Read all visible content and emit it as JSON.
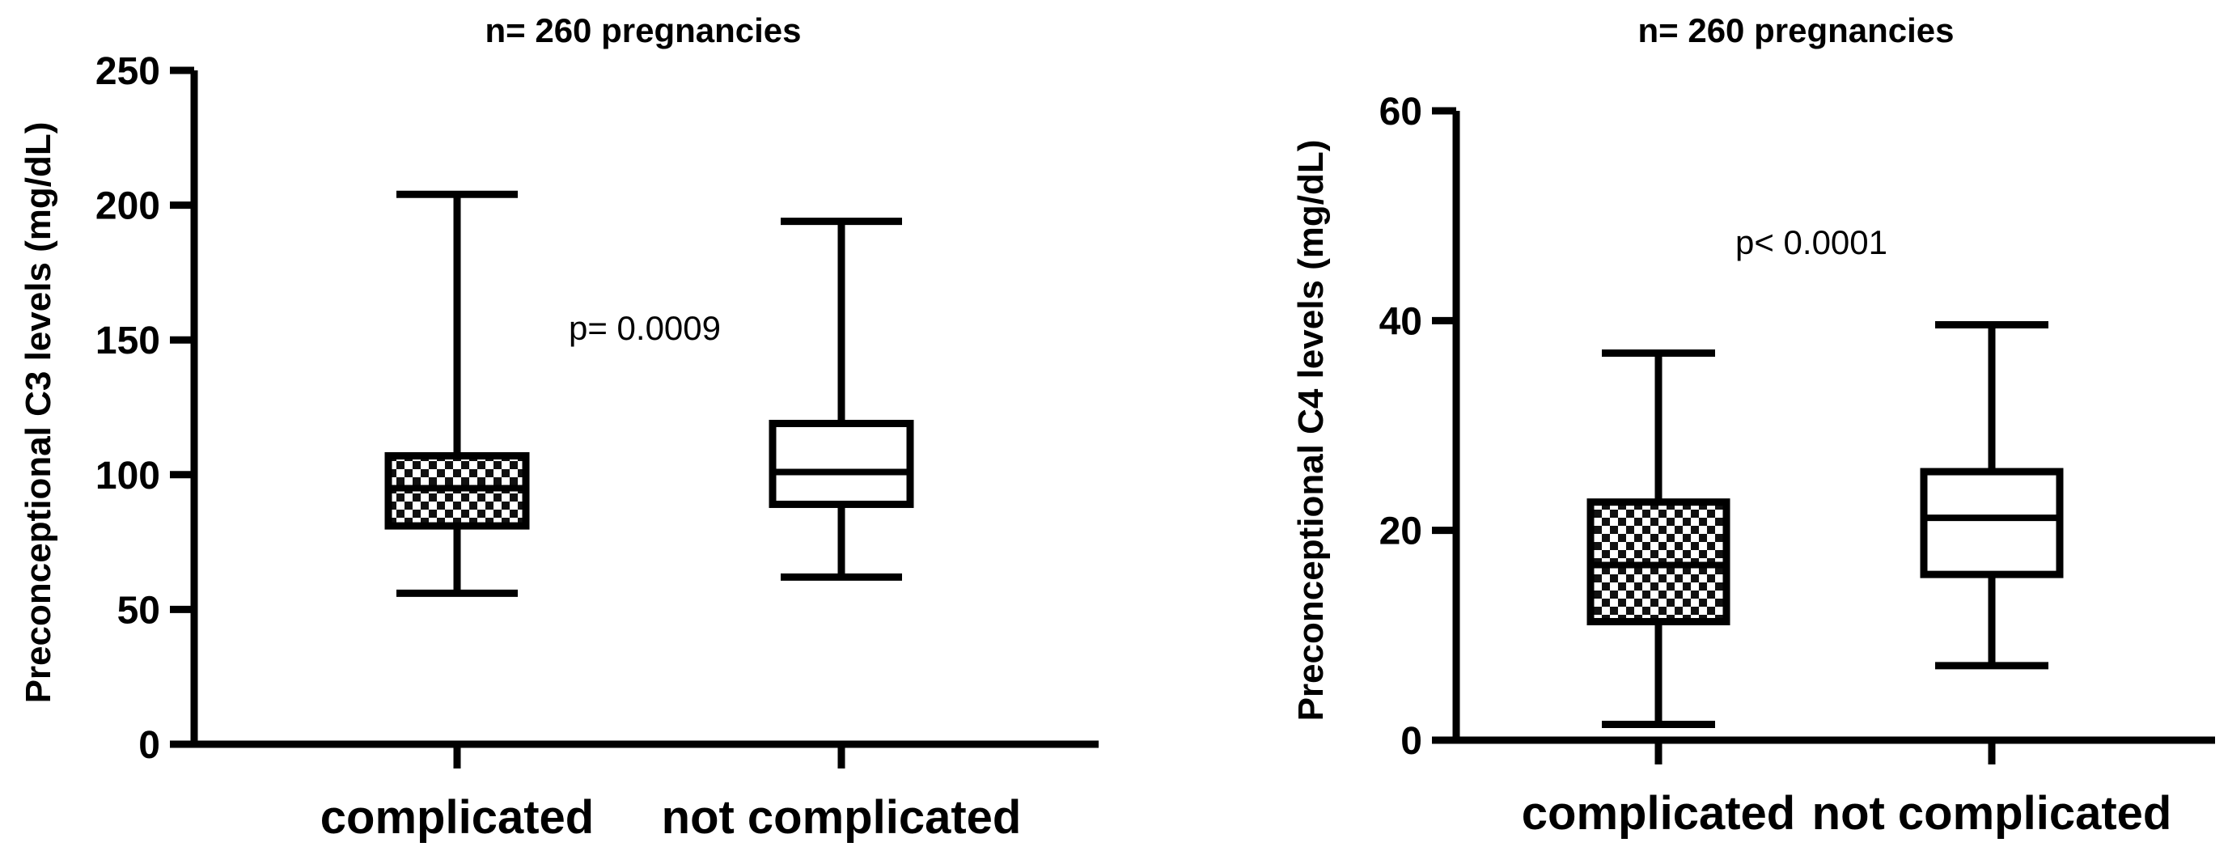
{
  "chart_data": [
    {
      "type": "box",
      "title": "n= 260 pregnancies",
      "xlabel": "",
      "ylabel": "Preconceptional C3 levels (mg/dL)",
      "ylim": [
        0,
        250
      ],
      "yticks": [
        0,
        50,
        100,
        150,
        200,
        250
      ],
      "categories": [
        "complicated",
        "not complicated"
      ],
      "series": [
        {
          "values": [
            {
              "min": 56,
              "q1": 81,
              "median": 95,
              "q3": 107,
              "max": 204
            },
            {
              "min": 62,
              "q1": 89,
              "median": 101,
              "q3": 119,
              "max": 194
            }
          ]
        }
      ],
      "fill_patterns": [
        "checkerboard",
        "none"
      ],
      "annotation": "p= 0.0009",
      "grid": false
    },
    {
      "type": "box",
      "title": "n= 260 pregnancies",
      "xlabel": "",
      "ylabel": "Preconceptional C4 levels (mg/dL)",
      "ylim": [
        0,
        60
      ],
      "yticks": [
        0,
        20,
        40,
        60
      ],
      "categories": [
        "complicated",
        "not complicated"
      ],
      "series": [
        {
          "values": [
            {
              "min": 1.5,
              "q1": 11.3,
              "median": 16.7,
              "q3": 22.7,
              "max": 36.9
            },
            {
              "min": 7.1,
              "q1": 15.8,
              "median": 21.2,
              "q3": 25.6,
              "max": 39.6
            }
          ]
        }
      ],
      "fill_patterns": [
        "checkerboard",
        "none"
      ],
      "annotation": "p< 0.0001",
      "grid": false
    }
  ]
}
